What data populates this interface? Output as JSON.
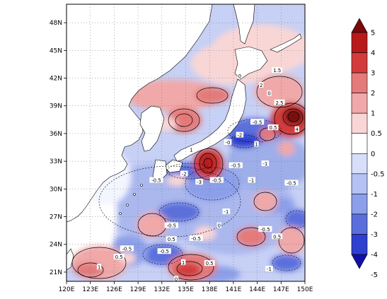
{
  "map": {
    "lon_range": [
      120,
      150
    ],
    "lat_range": [
      20,
      50
    ],
    "lon_ticks": [
      "120E",
      "123E",
      "126E",
      "129E",
      "132E",
      "135E",
      "138E",
      "141E",
      "144E",
      "147E",
      "150E"
    ],
    "lat_ticks": [
      "21N",
      "24N",
      "27N",
      "30N",
      "33N",
      "36N",
      "39N",
      "42N",
      "45N",
      "48N"
    ],
    "gridlines": "dotted",
    "land_fill": "#ffffff",
    "coastline_color": "#000000"
  },
  "colorbar": {
    "orientation": "vertical",
    "placement": "right",
    "labels": [
      "5",
      "4",
      "3",
      "2",
      "1",
      "0.5",
      "0",
      "-0.5",
      "-1",
      "-2",
      "-3",
      "-4",
      "-5"
    ],
    "colors": [
      "#7a0a0a",
      "#b81a1a",
      "#d23c3c",
      "#e47a7a",
      "#f0a8a8",
      "#f9d6d6",
      "#ffffff",
      "#d6defa",
      "#b4c1f2",
      "#8c9fe9",
      "#5b6fdc",
      "#2f3fcf",
      "#1010a8"
    ]
  },
  "contour_labels": [
    {
      "text": "0",
      "lon": 141.8,
      "lat": 42.2
    },
    {
      "text": "1.5",
      "lon": 146.5,
      "lat": 42.8
    },
    {
      "text": "2",
      "lon": 144.5,
      "lat": 41.2
    },
    {
      "text": "0",
      "lon": 145.5,
      "lat": 40.3
    },
    {
      "text": "2.5",
      "lon": 146.8,
      "lat": 39.3
    },
    {
      "text": "-0.5",
      "lon": 144.0,
      "lat": 37.2
    },
    {
      "text": "0.5",
      "lon": 146.0,
      "lat": 36.6
    },
    {
      "text": "4",
      "lon": 149.0,
      "lat": 36.4
    },
    {
      "text": "-2",
      "lon": 141.8,
      "lat": 35.8
    },
    {
      "text": "1",
      "lon": 143.9,
      "lat": 34.8
    },
    {
      "text": "-0",
      "lon": 140.3,
      "lat": 35.0
    },
    {
      "text": "1",
      "lon": 135.7,
      "lat": 34.2
    },
    {
      "text": "-0.5",
      "lon": 141.3,
      "lat": 32.5
    },
    {
      "text": "-1",
      "lon": 145.0,
      "lat": 32.7
    },
    {
      "text": "-2",
      "lon": 134.8,
      "lat": 31.6
    },
    {
      "text": "-0.5",
      "lon": 131.3,
      "lat": 30.9
    },
    {
      "text": "-3",
      "lon": 136.7,
      "lat": 30.7
    },
    {
      "text": "-0.5",
      "lon": 138.9,
      "lat": 30.9
    },
    {
      "text": "-1",
      "lon": 143.3,
      "lat": 30.9
    },
    {
      "text": "-0.5",
      "lon": 148.3,
      "lat": 30.6
    },
    {
      "text": "-1",
      "lon": 140.1,
      "lat": 27.5
    },
    {
      "text": "-0.5",
      "lon": 133.2,
      "lat": 26.0
    },
    {
      "text": "0",
      "lon": 139.2,
      "lat": 26.0
    },
    {
      "text": "0.5",
      "lon": 133.2,
      "lat": 24.5
    },
    {
      "text": "-0.5",
      "lon": 136.3,
      "lat": 24.6
    },
    {
      "text": "-0.5",
      "lon": 145.0,
      "lat": 25.6
    },
    {
      "text": "0.5",
      "lon": 146.5,
      "lat": 24.8
    },
    {
      "text": "-0.5",
      "lon": 127.6,
      "lat": 23.5
    },
    {
      "text": "0.5",
      "lon": 126.6,
      "lat": 22.6
    },
    {
      "text": "1",
      "lon": 124.1,
      "lat": 21.5
    },
    {
      "text": "-0.5",
      "lon": 132.3,
      "lat": 23.2
    },
    {
      "text": "1",
      "lon": 134.7,
      "lat": 22.0
    },
    {
      "text": "0.5",
      "lon": 138.0,
      "lat": 21.9
    },
    {
      "text": "-1",
      "lon": 145.5,
      "lat": 21.3
    },
    {
      "text": "0",
      "lon": 133.8,
      "lat": 20.2
    }
  ]
}
